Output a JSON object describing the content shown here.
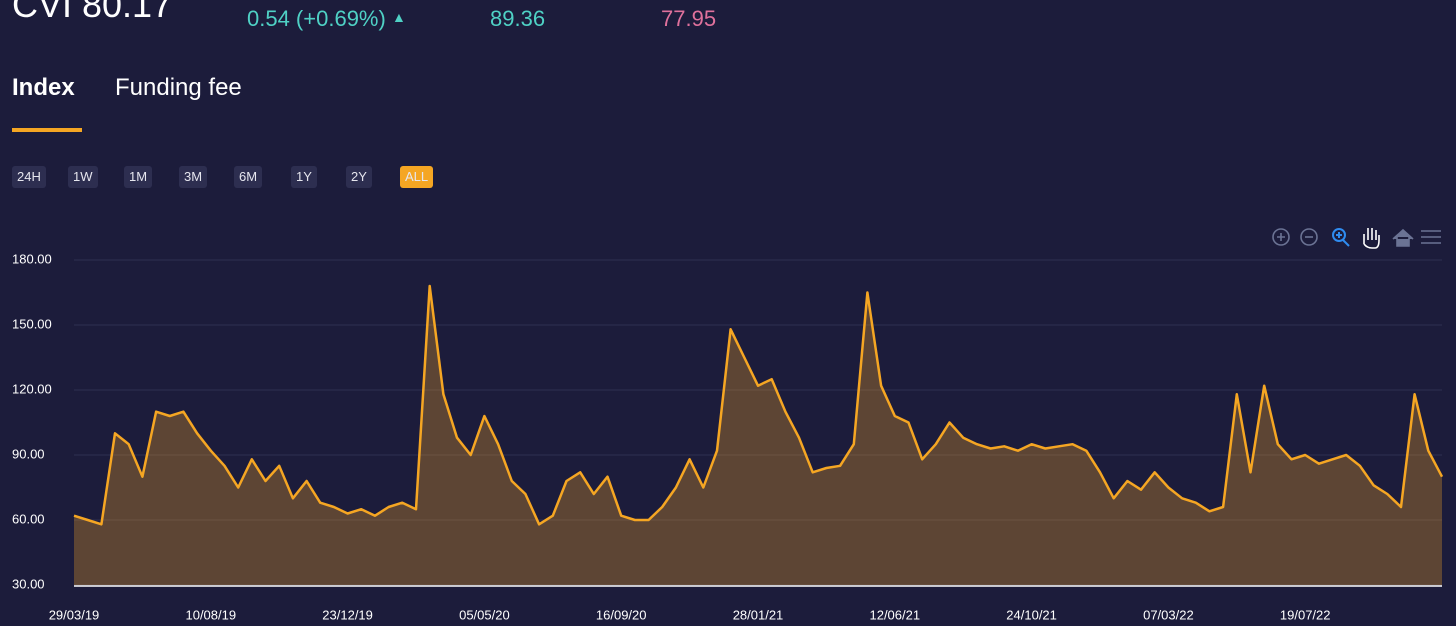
{
  "header": {
    "title": "CVI 80.17",
    "change": "0.54 (+0.69%)",
    "high": "89.36",
    "low": "77.95"
  },
  "tabs": [
    "Index",
    "Funding fee"
  ],
  "ranges": [
    "24H",
    "1W",
    "1M",
    "3M",
    "6M",
    "1Y",
    "2Y",
    "ALL"
  ],
  "chart_data": {
    "type": "line",
    "categories": [
      "29/03/19",
      null,
      null,
      null,
      null,
      null,
      null,
      null,
      null,
      null,
      "10/08/19",
      null,
      null,
      null,
      null,
      null,
      null,
      null,
      null,
      null,
      "23/12/19",
      null,
      null,
      null,
      null,
      null,
      null,
      null,
      null,
      null,
      "05/05/20",
      null,
      null,
      null,
      null,
      null,
      null,
      null,
      null,
      null,
      "16/09/20",
      null,
      null,
      null,
      null,
      null,
      null,
      null,
      null,
      null,
      "28/01/21",
      null,
      null,
      null,
      null,
      null,
      null,
      null,
      null,
      null,
      "12/06/21",
      null,
      null,
      null,
      null,
      null,
      null,
      null,
      null,
      null,
      "24/10/21",
      null,
      null,
      null,
      null,
      null,
      null,
      null,
      null,
      null,
      "07/03/22",
      null,
      null,
      null,
      null,
      null,
      null,
      null,
      null,
      null,
      "19/07/22",
      null,
      null,
      null,
      null,
      null,
      null,
      null,
      null,
      null,
      null
    ],
    "series": [
      {
        "color": "#f5a623",
        "values": [
          62,
          60,
          58,
          100,
          95,
          80,
          110,
          108,
          110,
          100,
          92,
          85,
          75,
          88,
          78,
          85,
          70,
          78,
          68,
          66,
          63,
          65,
          62,
          66,
          68,
          65,
          168,
          118,
          98,
          90,
          108,
          95,
          78,
          72,
          58,
          62,
          78,
          82,
          72,
          80,
          62,
          60,
          60,
          66,
          75,
          88,
          75,
          92,
          148,
          135,
          122,
          125,
          110,
          98,
          82,
          84,
          85,
          95,
          165,
          122,
          108,
          105,
          88,
          95,
          105,
          98,
          95,
          93,
          94,
          92,
          95,
          93,
          94,
          95,
          92,
          82,
          70,
          78,
          74,
          82,
          75,
          70,
          68,
          64,
          66,
          118,
          82,
          122,
          95,
          88,
          90,
          86,
          88,
          90,
          85,
          76,
          72,
          66,
          118,
          92,
          80
        ]
      }
    ],
    "ylim": [
      30,
      180
    ],
    "yticks": [
      {
        "value": 30,
        "label": "30.00"
      },
      {
        "value": 60,
        "label": "60.00"
      },
      {
        "value": 90,
        "label": "90.00"
      },
      {
        "value": 120,
        "label": "120.00"
      },
      {
        "value": 150,
        "label": "150.00"
      },
      {
        "value": 180,
        "label": "180.00"
      }
    ],
    "grid": true
  }
}
